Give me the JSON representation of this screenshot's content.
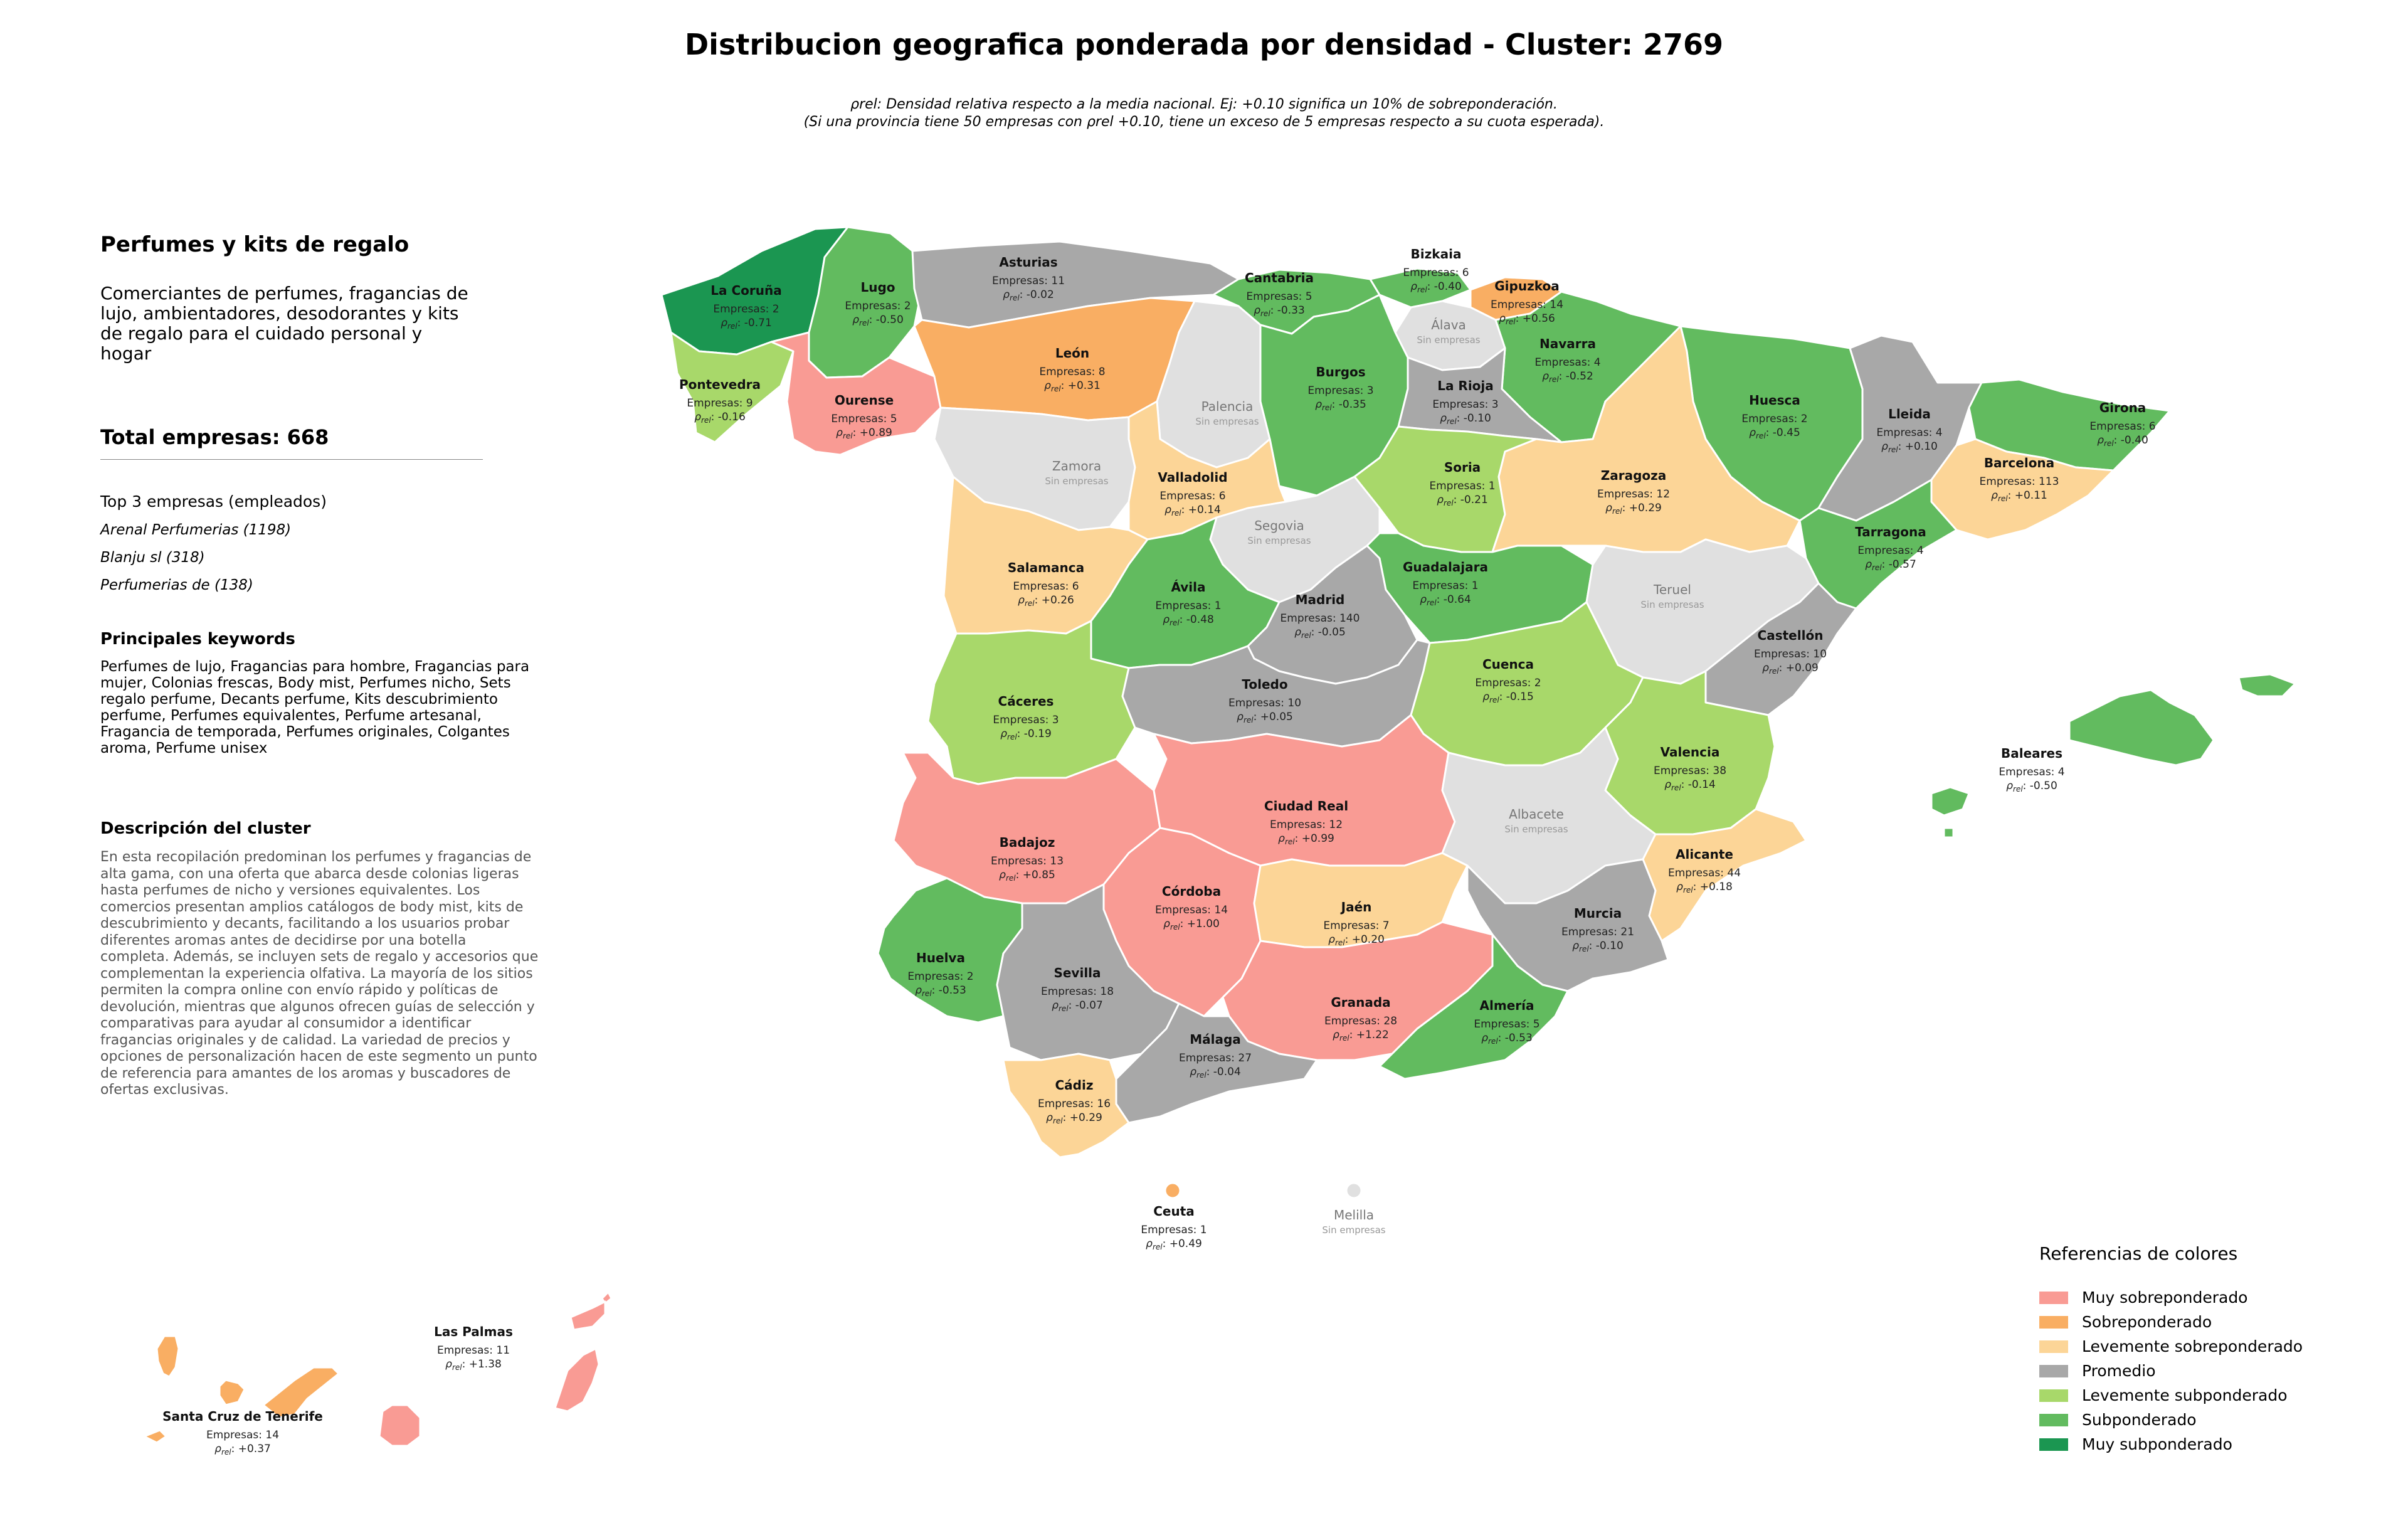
{
  "title": "Distribucion geografica ponderada por densidad - Cluster: 2769",
  "subtitle_line1": "ρrel: Densidad relativa respecto a la media nacional. Ej: +0.10 significa un 10% de sobreponderación.",
  "subtitle_line2": "(Si una provincia tiene 50 empresas con ρrel +0.10, tiene un exceso de 5 empresas respecto a su cuota esperada).",
  "panel": {
    "heading": "Perfumes y kits de regalo",
    "description": "Comerciantes de perfumes, fragancias de lujo, ambientadores, desodorantes y kits de regalo para el cuidado personal y hogar",
    "total": "Total empresas: 668",
    "top3_title": "Top 3 empresas (empleados)",
    "top3": [
      "Arenal Perfumerias (1198)",
      "Blanju sl (318)",
      "Perfumerias de (138)"
    ],
    "keywords_title": "Principales keywords",
    "keywords": "Perfumes de lujo, Fragancias para hombre, Fragancias para mujer, Colonias frescas, Body mist, Perfumes nicho, Sets regalo perfume, Decants perfume, Kits descubrimiento perfume, Perfumes equivalentes, Perfume artesanal, Fragancia de temporada, Perfumes originales, Colgantes aroma, Perfume unisex",
    "cluster_title": "Descripción del cluster",
    "cluster_text": "En esta recopilación predominan los perfumes y fragancias de alta gama, con una oferta que abarca desde colonias ligeras hasta perfumes de nicho y versiones equivalentes. Los comercios presentan amplios catálogos de body mist, kits de descubrimiento y decants, facilitando a los usuarios probar diferentes aromas antes de decidirse por una botella completa. Además, se incluyen sets de regalo y accesorios que complementan la experiencia olfativa. La mayoría de los sitios permiten la compra online con envío rápido y políticas de devolución, mientras que algunos ofrecen guías de selección y comparativas para ayudar al consumidor a identificar fragancias originales y de calidad. La variedad de precios y opciones de personalización hacen de este segmento un punto de referencia para amantes de los aromas y buscadores de ofertas exclusivas."
  },
  "legend": {
    "title": "Referencias de colores",
    "items": [
      {
        "label": "Muy sobreponderado",
        "color": "#f99b94"
      },
      {
        "label": "Sobreponderado",
        "color": "#f9ae63"
      },
      {
        "label": "Levemente sobreponderado",
        "color": "#fcd597"
      },
      {
        "label": "Promedio",
        "color": "#a8a8a8"
      },
      {
        "label": "Levemente subponderado",
        "color": "#a8d86a"
      },
      {
        "label": "Subponderado",
        "color": "#62bb5f"
      },
      {
        "label": "Muy subponderado",
        "color": "#1b9651"
      }
    ]
  },
  "labels": {
    "companies_prefix": "Empresas:",
    "rho": "ρ",
    "rho_sub": "rel",
    "no_companies": "Sin empresas",
    "empty_color": "#e0e0e0"
  },
  "provinces": [
    {
      "name": "La Coruña",
      "empresas": 2,
      "rho": "-0.71",
      "cat": 6
    },
    {
      "name": "Lugo",
      "empresas": 2,
      "rho": "-0.50",
      "cat": 5
    },
    {
      "name": "Asturias",
      "empresas": 11,
      "rho": "-0.02",
      "cat": 3
    },
    {
      "name": "Cantabria",
      "empresas": 5,
      "rho": "-0.33",
      "cat": 5
    },
    {
      "name": "Bizkaia",
      "empresas": 6,
      "rho": "-0.40",
      "cat": 5
    },
    {
      "name": "Gipuzkoa",
      "empresas": 14,
      "rho": "+0.56",
      "cat": 1
    },
    {
      "name": "Álava",
      "empresas": null,
      "rho": null,
      "cat": null
    },
    {
      "name": "Navarra",
      "empresas": 4,
      "rho": "-0.52",
      "cat": 5
    },
    {
      "name": "Pontevedra",
      "empresas": 9,
      "rho": "-0.16",
      "cat": 4
    },
    {
      "name": "Ourense",
      "empresas": 5,
      "rho": "+0.89",
      "cat": 0
    },
    {
      "name": "León",
      "empresas": 8,
      "rho": "+0.31",
      "cat": 1
    },
    {
      "name": "Palencia",
      "empresas": null,
      "rho": null,
      "cat": null
    },
    {
      "name": "Burgos",
      "empresas": 3,
      "rho": "-0.35",
      "cat": 5
    },
    {
      "name": "La Rioja",
      "empresas": 3,
      "rho": "-0.10",
      "cat": 3
    },
    {
      "name": "Huesca",
      "empresas": 2,
      "rho": "-0.45",
      "cat": 5
    },
    {
      "name": "Lleida",
      "empresas": 4,
      "rho": "+0.10",
      "cat": 3
    },
    {
      "name": "Girona",
      "empresas": 6,
      "rho": "-0.40",
      "cat": 5
    },
    {
      "name": "Barcelona",
      "empresas": 113,
      "rho": "+0.11",
      "cat": 2
    },
    {
      "name": "Zamora",
      "empresas": null,
      "rho": null,
      "cat": null
    },
    {
      "name": "Valladolid",
      "empresas": 6,
      "rho": "+0.14",
      "cat": 2
    },
    {
      "name": "Soria",
      "empresas": 1,
      "rho": "-0.21",
      "cat": 4
    },
    {
      "name": "Zaragoza",
      "empresas": 12,
      "rho": "+0.29",
      "cat": 2
    },
    {
      "name": "Tarragona",
      "empresas": 4,
      "rho": "-0.57",
      "cat": 5
    },
    {
      "name": "Segovia",
      "empresas": null,
      "rho": null,
      "cat": null
    },
    {
      "name": "Salamanca",
      "empresas": 6,
      "rho": "+0.26",
      "cat": 2
    },
    {
      "name": "Ávila",
      "empresas": 1,
      "rho": "-0.48",
      "cat": 5
    },
    {
      "name": "Madrid",
      "empresas": 140,
      "rho": "-0.05",
      "cat": 3
    },
    {
      "name": "Guadalajara",
      "empresas": 1,
      "rho": "-0.64",
      "cat": 5
    },
    {
      "name": "Teruel",
      "empresas": null,
      "rho": null,
      "cat": null
    },
    {
      "name": "Castellón",
      "empresas": 10,
      "rho": "+0.09",
      "cat": 3
    },
    {
      "name": "Cáceres",
      "empresas": 3,
      "rho": "-0.19",
      "cat": 4
    },
    {
      "name": "Toledo",
      "empresas": 10,
      "rho": "+0.05",
      "cat": 3
    },
    {
      "name": "Cuenca",
      "empresas": 2,
      "rho": "-0.15",
      "cat": 4
    },
    {
      "name": "Valencia",
      "empresas": 38,
      "rho": "-0.14",
      "cat": 4
    },
    {
      "name": "Baleares",
      "empresas": 4,
      "rho": "-0.50",
      "cat": 5
    },
    {
      "name": "Badajoz",
      "empresas": 13,
      "rho": "+0.85",
      "cat": 0
    },
    {
      "name": "Ciudad Real",
      "empresas": 12,
      "rho": "+0.99",
      "cat": 0
    },
    {
      "name": "Albacete",
      "empresas": null,
      "rho": null,
      "cat": null
    },
    {
      "name": "Alicante",
      "empresas": 44,
      "rho": "+0.18",
      "cat": 2
    },
    {
      "name": "Córdoba",
      "empresas": 14,
      "rho": "+1.00",
      "cat": 0
    },
    {
      "name": "Jaén",
      "empresas": 7,
      "rho": "+0.20",
      "cat": 2
    },
    {
      "name": "Murcia",
      "empresas": 21,
      "rho": "-0.10",
      "cat": 3
    },
    {
      "name": "Huelva",
      "empresas": 2,
      "rho": "-0.53",
      "cat": 5
    },
    {
      "name": "Sevilla",
      "empresas": 18,
      "rho": "-0.07",
      "cat": 3
    },
    {
      "name": "Granada",
      "empresas": 28,
      "rho": "+1.22",
      "cat": 0
    },
    {
      "name": "Almería",
      "empresas": 5,
      "rho": "-0.53",
      "cat": 5
    },
    {
      "name": "Málaga",
      "empresas": 27,
      "rho": "-0.04",
      "cat": 3
    },
    {
      "name": "Cádiz",
      "empresas": 16,
      "rho": "+0.29",
      "cat": 2
    },
    {
      "name": "Ceuta",
      "empresas": 1,
      "rho": "+0.49",
      "cat": 1
    },
    {
      "name": "Melilla",
      "empresas": null,
      "rho": null,
      "cat": null
    },
    {
      "name": "Las Palmas",
      "empresas": 11,
      "rho": "+1.38",
      "cat": 0
    },
    {
      "name": "Santa Cruz de Tenerife",
      "empresas": 14,
      "rho": "+0.37",
      "cat": 1
    }
  ]
}
